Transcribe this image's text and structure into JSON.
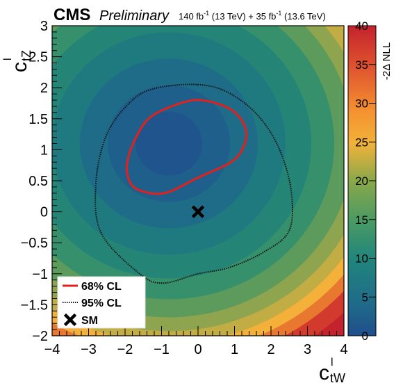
{
  "header": {
    "experiment": "CMS",
    "status": "Preliminary",
    "lumi_part1": "140 fb",
    "lumi_exp1": "-1",
    "lumi_part2": " (13 TeV) + 35 fb",
    "lumi_exp2": "-1",
    "lumi_part3": " (13.6 TeV)"
  },
  "axes": {
    "x_label_base": "c",
    "x_label_sup": "l",
    "x_label_sub": "tW",
    "y_label_base": "c",
    "y_label_sup": "l",
    "y_label_sub": "tZ",
    "colorbar_label": "-2Δ NLL"
  },
  "legend": {
    "entries": [
      {
        "label": "68% CL",
        "style": "solid",
        "color": "#e3201c"
      },
      {
        "label": "95% CL",
        "style": "dotted",
        "color": "#111111"
      },
      {
        "label": "SM",
        "style": "marker",
        "color": "#000000"
      }
    ]
  },
  "chart_data": {
    "type": "heatmap",
    "xlim": [
      -4,
      4
    ],
    "ylim": [
      -2,
      3
    ],
    "x_ticks": [
      -4,
      -3,
      -2,
      -1,
      0,
      1,
      2,
      3,
      4
    ],
    "x_tick_labels": [
      "−4",
      "−3",
      "−2",
      "−1",
      "0",
      "1",
      "2",
      "3",
      "4"
    ],
    "y_ticks": [
      -2,
      -1.5,
      -1,
      -0.5,
      0,
      0.5,
      1,
      1.5,
      2,
      2.5,
      3
    ],
    "y_tick_labels": [
      "−2",
      "−1.5",
      "−1",
      "−0.5",
      "0",
      "0.5",
      "1",
      "1.5",
      "2",
      "2.5",
      "3"
    ],
    "z_range": [
      0,
      40
    ],
    "z_ticks": [
      0,
      5,
      10,
      15,
      20,
      25,
      30,
      35,
      40
    ],
    "z_tick_labels": [
      "0",
      "5",
      "10",
      "15",
      "20",
      "25",
      "30",
      "35",
      "40"
    ],
    "best_fit": [
      -0.8,
      1.1
    ],
    "sm_point": [
      0,
      0
    ],
    "contour_68": [
      [
        -0.3,
        1.78
      ],
      [
        0.3,
        1.78
      ],
      [
        0.95,
        1.63
      ],
      [
        1.3,
        1.35
      ],
      [
        1.25,
        1.05
      ],
      [
        0.9,
        0.8
      ],
      [
        0.0,
        0.55
      ],
      [
        -0.8,
        0.32
      ],
      [
        -1.3,
        0.3
      ],
      [
        -1.8,
        0.42
      ],
      [
        -1.95,
        0.75
      ],
      [
        -1.7,
        1.2
      ],
      [
        -1.25,
        1.55
      ]
    ],
    "contour_95": [
      [
        0.0,
        2.05
      ],
      [
        0.8,
        1.93
      ],
      [
        1.6,
        1.58
      ],
      [
        2.2,
        1.05
      ],
      [
        2.55,
        0.35
      ],
      [
        2.5,
        -0.3
      ],
      [
        1.8,
        -0.65
      ],
      [
        0.85,
        -0.9
      ],
      [
        0.0,
        -1.0
      ],
      [
        -0.95,
        -1.15
      ],
      [
        -1.6,
        -1.0
      ],
      [
        -2.65,
        -0.35
      ],
      [
        -2.8,
        0.45
      ],
      [
        -2.5,
        1.25
      ],
      [
        -1.8,
        1.8
      ],
      [
        -1.1,
        2.0
      ]
    ],
    "grid": false,
    "legend_position": "bottom-left"
  }
}
